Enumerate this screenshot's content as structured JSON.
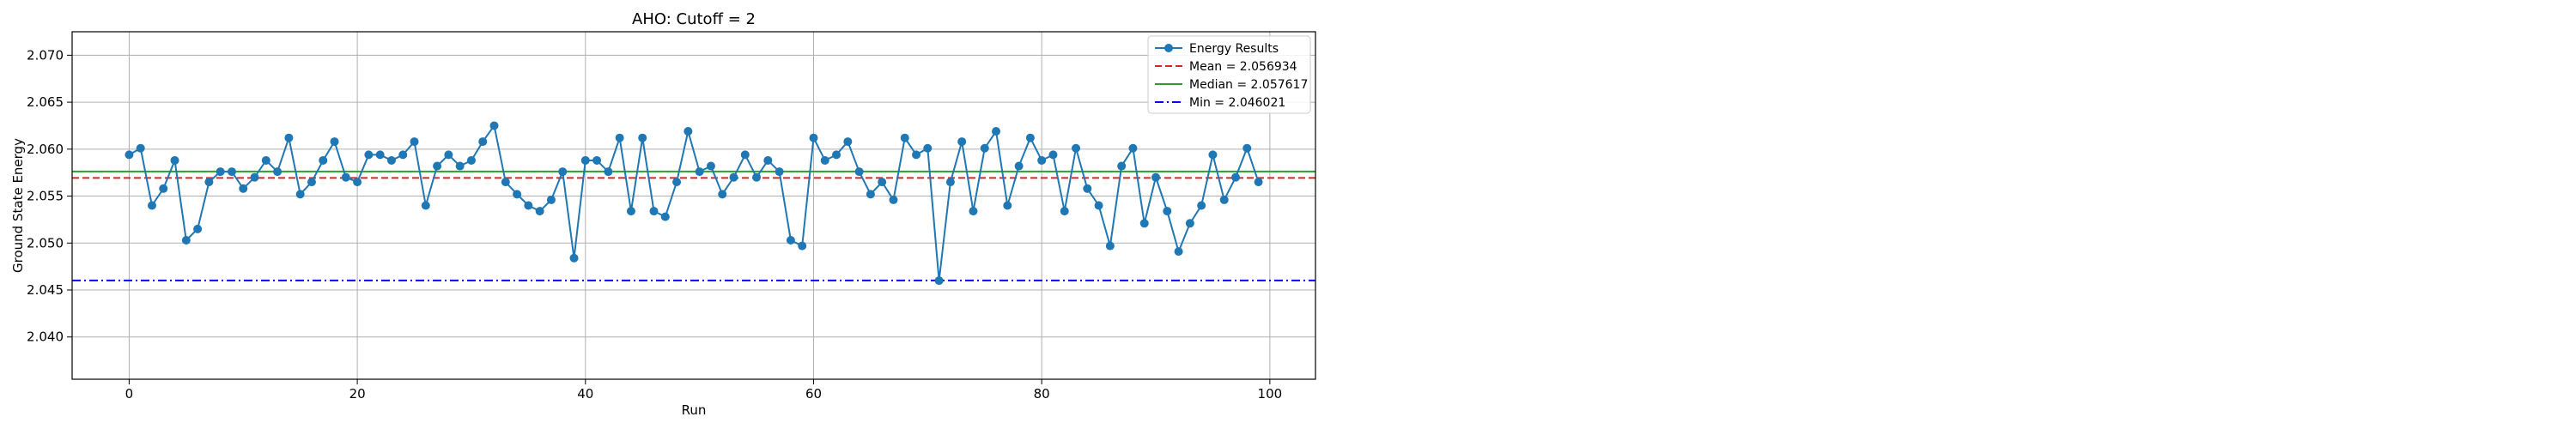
{
  "chart_data": {
    "type": "line",
    "title": "AHO: Cutoff = 2",
    "xlabel": "Run",
    "ylabel": "Ground State Energy",
    "xlim": [
      -5,
      104
    ],
    "ylim": [
      2.0355,
      2.0725
    ],
    "xticks": [
      0,
      20,
      40,
      60,
      80,
      100
    ],
    "yticks": [
      2.04,
      2.045,
      2.05,
      2.055,
      2.06,
      2.065,
      2.07
    ],
    "xtick_labels": [
      "0",
      "20",
      "40",
      "60",
      "80",
      "100"
    ],
    "ytick_labels": [
      "2.040",
      "2.045",
      "2.050",
      "2.055",
      "2.060",
      "2.065",
      "2.070"
    ],
    "grid": true,
    "legend_position": "top-right",
    "series": [
      {
        "name": "Energy Results",
        "color": "#1f77b4",
        "marker": "circle",
        "x": [
          0,
          1,
          2,
          3,
          4,
          5,
          6,
          7,
          8,
          9,
          10,
          11,
          12,
          13,
          14,
          15,
          16,
          17,
          18,
          19,
          20,
          21,
          22,
          23,
          24,
          25,
          26,
          27,
          28,
          29,
          30,
          31,
          32,
          33,
          34,
          35,
          36,
          37,
          38,
          39,
          40,
          41,
          42,
          43,
          44,
          45,
          46,
          47,
          48,
          49,
          50,
          51,
          52,
          53,
          54,
          55,
          56,
          57,
          58,
          59,
          60,
          61,
          62,
          63,
          64,
          65,
          66,
          67,
          68,
          69,
          70,
          71,
          72,
          73,
          74,
          75,
          76,
          77,
          78,
          79,
          80,
          81,
          82,
          83,
          84,
          85,
          86,
          87,
          88,
          89,
          90,
          91,
          92,
          93,
          94,
          95,
          96,
          97,
          98,
          99
        ],
        "values": [
          2.0594,
          2.0601,
          2.054,
          2.0558,
          2.0588,
          2.0503,
          2.0515,
          2.0565,
          2.0576,
          2.0576,
          2.0558,
          2.057,
          2.0588,
          2.0576,
          2.0612,
          2.0552,
          2.0565,
          2.0588,
          2.0608,
          2.057,
          2.0565,
          2.0594,
          2.0594,
          2.0588,
          2.0594,
          2.0608,
          2.054,
          2.0582,
          2.0594,
          2.0582,
          2.0588,
          2.0608,
          2.0625,
          2.0565,
          2.0552,
          2.054,
          2.0534,
          2.0546,
          2.0576,
          2.0484,
          2.0588,
          2.0588,
          2.0576,
          2.0612,
          2.0534,
          2.0612,
          2.0534,
          2.0528,
          2.0565,
          2.0619,
          2.0576,
          2.0582,
          2.0552,
          2.057,
          2.0594,
          2.057,
          2.0588,
          2.0576,
          2.0503,
          2.0497,
          2.0612,
          2.0588,
          2.0594,
          2.0608,
          2.0576,
          2.0552,
          2.0565,
          2.0546,
          2.0612,
          2.0594,
          2.0601,
          2.046,
          2.0565,
          2.0608,
          2.0534,
          2.0601,
          2.0619,
          2.054,
          2.0582,
          2.0612,
          2.0588,
          2.0594,
          2.0534,
          2.0601,
          2.0558,
          2.054,
          2.0497,
          2.0582,
          2.0601,
          2.0521,
          2.057,
          2.0534,
          2.0491,
          2.0521,
          2.054,
          2.0594,
          2.0546,
          2.057,
          2.0601,
          2.0565
        ]
      }
    ],
    "reference_lines": [
      {
        "name": "Mean = 2.056934",
        "value": 2.056934,
        "color": "#d62728",
        "style": "dashed"
      },
      {
        "name": "Median = 2.057617",
        "value": 2.057617,
        "color": "#2ca02c",
        "style": "solid"
      },
      {
        "name": "Min = 2.046021",
        "value": 2.046021,
        "color": "#0000ff",
        "style": "dashdot"
      }
    ]
  }
}
